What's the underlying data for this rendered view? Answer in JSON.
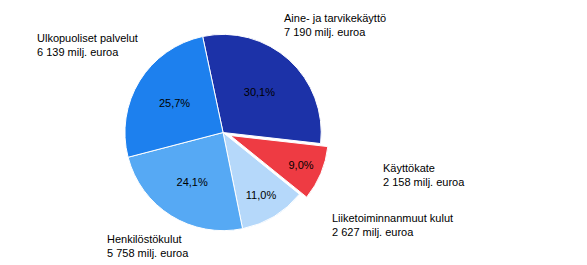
{
  "chart_data": {
    "type": "pie",
    "categories": [
      "Aine- ja tarvikekäyttö",
      "Käyttökate",
      "Liiketoiminnanmuut kulut",
      "Henkilöstökulut",
      "Ulkopuoliset palvelut"
    ],
    "values": [
      30.1,
      9.0,
      11.0,
      24.1,
      25.7
    ],
    "value_labels": [
      "30,1%",
      "9,0%",
      "11,0%",
      "24,1%",
      "25,7%"
    ],
    "amount_labels": [
      "7 190 milj. euroa",
      "2 158 milj. euroa",
      "2 627 milj. euroa",
      "5 758 milj. euroa",
      "6 139 milj. euroa"
    ],
    "colors": [
      "#1c32a8",
      "#ee3b43",
      "#b5d8fa",
      "#56a9f4",
      "#1d80ee"
    ],
    "data_labels": true
  }
}
